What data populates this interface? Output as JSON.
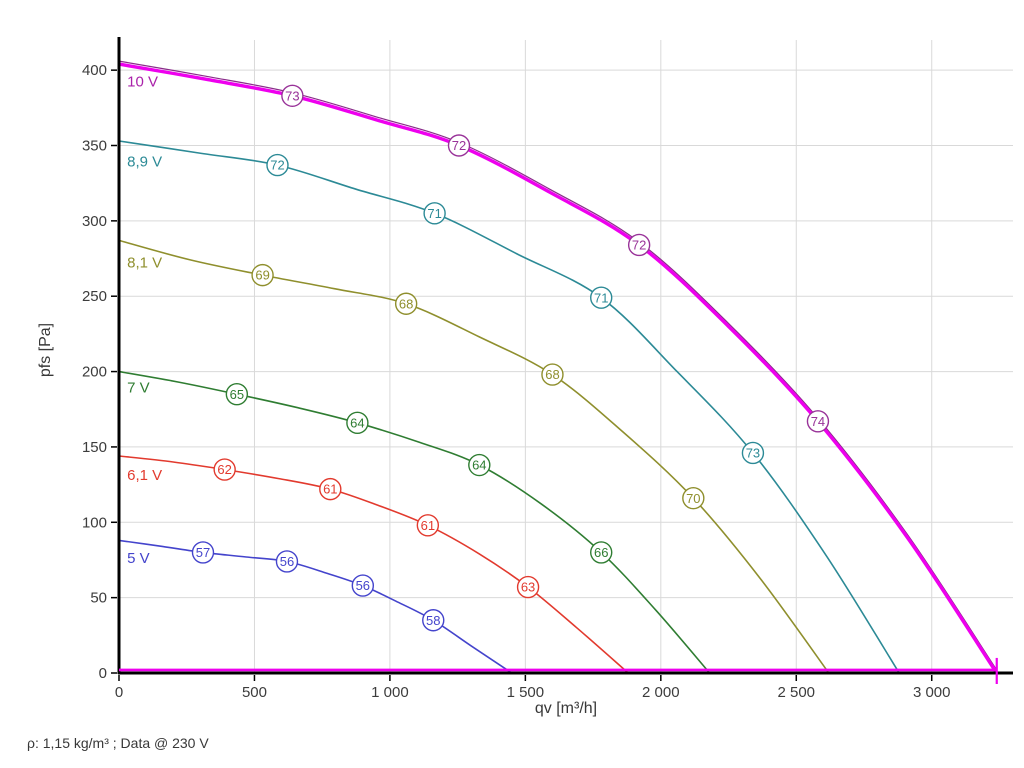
{
  "chart_data": {
    "type": "line",
    "xlabel": "qv [m³/h]",
    "ylabel": "pfs [Pa]",
    "footnote": "ρ: 1,15 kg/m³ ; Data @ 230 V",
    "xlim": [
      0,
      3300
    ],
    "ylim": [
      0,
      420
    ],
    "xticks": [
      0,
      500,
      1000,
      1500,
      2000,
      2500,
      3000
    ],
    "xtick_labels": [
      "0",
      "500",
      "1 000",
      "1 500",
      "2 000",
      "2 500",
      "3 000"
    ],
    "yticks": [
      0,
      50,
      100,
      150,
      200,
      250,
      300,
      350,
      400
    ],
    "ytick_labels": [
      "0",
      "50",
      "100",
      "150",
      "200",
      "250",
      "300",
      "350",
      "400"
    ],
    "grid": true,
    "grid_color": "#d9d9d9",
    "axis_color": "#000000",
    "tick_label_color": "#3c3c3c",
    "series": [
      {
        "name": "5 V",
        "color": "#4444cc",
        "label_x": 30,
        "label_y": 73,
        "points": [
          [
            0,
            88
          ],
          [
            160,
            84
          ],
          [
            310,
            80
          ],
          [
            470,
            77
          ],
          [
            620,
            74
          ],
          [
            770,
            66
          ],
          [
            900,
            58
          ],
          [
            1030,
            47
          ],
          [
            1160,
            35
          ],
          [
            1300,
            18
          ],
          [
            1450,
            0
          ]
        ],
        "markers": [
          {
            "x": 310,
            "y": 80,
            "label": "57"
          },
          {
            "x": 620,
            "y": 74,
            "label": "56"
          },
          {
            "x": 900,
            "y": 58,
            "label": "56"
          },
          {
            "x": 1160,
            "y": 35,
            "label": "58"
          }
        ]
      },
      {
        "name": "6,1 V",
        "color": "#e23a2e",
        "label_x": 30,
        "label_y": 128,
        "points": [
          [
            0,
            144
          ],
          [
            200,
            140
          ],
          [
            390,
            135
          ],
          [
            590,
            129
          ],
          [
            780,
            122
          ],
          [
            960,
            111
          ],
          [
            1140,
            98
          ],
          [
            1330,
            79
          ],
          [
            1510,
            57
          ],
          [
            1690,
            30
          ],
          [
            1880,
            0
          ]
        ],
        "markers": [
          {
            "x": 390,
            "y": 135,
            "label": "62"
          },
          {
            "x": 780,
            "y": 122,
            "label": "61"
          },
          {
            "x": 1140,
            "y": 98,
            "label": "61"
          },
          {
            "x": 1510,
            "y": 57,
            "label": "63"
          }
        ]
      },
      {
        "name": "7 V",
        "color": "#2f7d32",
        "label_x": 30,
        "label_y": 186,
        "points": [
          [
            0,
            200
          ],
          [
            220,
            193
          ],
          [
            435,
            185
          ],
          [
            660,
            176
          ],
          [
            880,
            166
          ],
          [
            1110,
            153
          ],
          [
            1330,
            138
          ],
          [
            1560,
            112
          ],
          [
            1780,
            80
          ],
          [
            1980,
            42
          ],
          [
            2180,
            0
          ]
        ],
        "markers": [
          {
            "x": 435,
            "y": 185,
            "label": "65"
          },
          {
            "x": 880,
            "y": 166,
            "label": "64"
          },
          {
            "x": 1330,
            "y": 138,
            "label": "64"
          },
          {
            "x": 1780,
            "y": 80,
            "label": "66"
          }
        ]
      },
      {
        "name": "8,1 V",
        "color": "#8f8f2d",
        "label_x": 30,
        "label_y": 269,
        "points": [
          [
            0,
            287
          ],
          [
            265,
            274
          ],
          [
            530,
            264
          ],
          [
            795,
            255
          ],
          [
            1060,
            245
          ],
          [
            1330,
            223
          ],
          [
            1600,
            198
          ],
          [
            1860,
            160
          ],
          [
            2120,
            116
          ],
          [
            2370,
            62
          ],
          [
            2620,
            0
          ]
        ],
        "markers": [
          {
            "x": 530,
            "y": 264,
            "label": "69"
          },
          {
            "x": 1060,
            "y": 245,
            "label": "68"
          },
          {
            "x": 1600,
            "y": 198,
            "label": "68"
          },
          {
            "x": 2120,
            "y": 116,
            "label": "70"
          }
        ]
      },
      {
        "name": "8,9 V",
        "color": "#2c8a96",
        "label_x": 30,
        "label_y": 336,
        "points": [
          [
            0,
            353
          ],
          [
            295,
            345
          ],
          [
            585,
            337
          ],
          [
            875,
            321
          ],
          [
            1165,
            305
          ],
          [
            1470,
            278
          ],
          [
            1780,
            249
          ],
          [
            2060,
            200
          ],
          [
            2340,
            146
          ],
          [
            2610,
            78
          ],
          [
            2880,
            0
          ]
        ],
        "markers": [
          {
            "x": 585,
            "y": 337,
            "label": "72"
          },
          {
            "x": 1165,
            "y": 305,
            "label": "71"
          },
          {
            "x": 1780,
            "y": 249,
            "label": "71"
          },
          {
            "x": 2340,
            "y": 146,
            "label": "73"
          }
        ]
      },
      {
        "name": "10 V",
        "color": "#ee00ee",
        "width": 3.4,
        "companion_color": "#8a2b8a",
        "marker_color": "#993399",
        "label_color": "#aa22aa",
        "label_x": 30,
        "label_y": 389,
        "points": [
          [
            0,
            404
          ],
          [
            320,
            394
          ],
          [
            640,
            383
          ],
          [
            950,
            367
          ],
          [
            1255,
            350
          ],
          [
            1590,
            319
          ],
          [
            1920,
            284
          ],
          [
            2250,
            230
          ],
          [
            2580,
            167
          ],
          [
            2910,
            90
          ],
          [
            3240,
            0
          ]
        ],
        "markers": [
          {
            "x": 640,
            "y": 383,
            "label": "73"
          },
          {
            "x": 1255,
            "y": 350,
            "label": "72"
          },
          {
            "x": 1920,
            "y": 284,
            "label": "72"
          },
          {
            "x": 2580,
            "y": 167,
            "label": "74"
          }
        ]
      }
    ],
    "zero_line": {
      "color": "#ee00ee",
      "y": 2,
      "x_start": 0,
      "x_end": 3240,
      "end_tick_x": 3240
    }
  }
}
